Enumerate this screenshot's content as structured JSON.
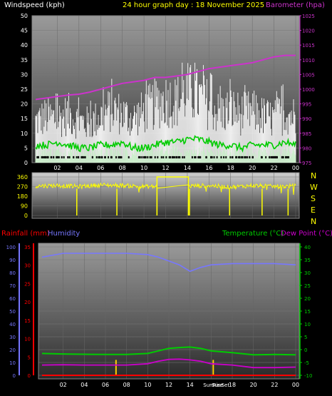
{
  "header": {
    "left_title": "Windspeed (kph)",
    "center_title": "24 hour graph day : 18 November 2025",
    "right_title": "Barometer (hpa)"
  },
  "direction_letters": [
    "N",
    "W",
    "S",
    "E",
    "N"
  ],
  "bottom_titles": {
    "rainfall": "Rainfall (mm)",
    "humidity": "Humidity",
    "temperature": "Temperature (°C)",
    "dewpoint": "Dew Point (°C)"
  },
  "sun_markers": {
    "sunrise_label": "SunRise",
    "sunset_label": "SunSet",
    "sunrise_hour": 7,
    "sunset_hour": 16.2
  },
  "colors": {
    "wind": "#ffffff",
    "wind_avg": "#00cc00",
    "gust_fill": "#c8f0c8",
    "barometer": "#cc33cc",
    "direction": "#ffff00",
    "humidity": "#7777ff",
    "temperature": "#00cc00",
    "dewpoint": "#cc00cc",
    "rainfall": "#ff0000"
  },
  "chart_data": [
    {
      "type": "line",
      "name": "wind-barometer",
      "x_ticks": [
        "02",
        "04",
        "06",
        "08",
        "10",
        "12",
        "14",
        "16",
        "18",
        "20",
        "22",
        "00"
      ],
      "y_left_ticks": [
        "0",
        "5",
        "10",
        "15",
        "20",
        "25",
        "30",
        "35",
        "40",
        "45",
        "50"
      ],
      "y_left_range": [
        0,
        50
      ],
      "y_right_ticks": [
        "975",
        "980",
        "985",
        "990",
        "995",
        "1000",
        "1005",
        "1010",
        "1015",
        "1020",
        "1025"
      ],
      "y_right_range": [
        975,
        1025
      ],
      "series": [
        {
          "name": "Barometer (hpa)",
          "x": [
            0,
            1,
            2,
            3,
            4,
            5,
            6,
            7,
            8,
            9,
            10,
            11,
            12,
            13,
            14,
            15,
            16,
            17,
            18,
            19,
            20,
            21,
            22,
            23,
            24
          ],
          "values": [
            996.5,
            997,
            997.5,
            998,
            998.3,
            999,
            1000,
            1001,
            1002,
            1002.5,
            1003,
            1004,
            1004,
            1004.5,
            1005,
            1006,
            1007,
            1007.5,
            1008,
            1008.5,
            1009,
            1010,
            1011,
            1011.5,
            1011.5
          ]
        },
        {
          "name": "Wind avg",
          "x": [
            0,
            1,
            2,
            3,
            4,
            5,
            6,
            7,
            8,
            9,
            10,
            11,
            12,
            13,
            14,
            15,
            16,
            17,
            18,
            19,
            20,
            21,
            22,
            23,
            24
          ],
          "values": [
            6,
            6,
            7,
            6,
            5,
            5,
            6,
            6,
            7,
            5,
            5,
            6,
            7,
            7,
            8,
            8,
            7,
            6,
            6,
            5,
            6,
            6,
            6,
            7,
            6
          ]
        },
        {
          "name": "Wind gust",
          "x": [
            0,
            1,
            2,
            3,
            4,
            5,
            6,
            7,
            8,
            9,
            10,
            11,
            12,
            13,
            14,
            15,
            16,
            17,
            18,
            19,
            20,
            21,
            22,
            23,
            24
          ],
          "values": [
            17,
            19,
            18,
            20,
            17,
            16,
            19,
            22,
            20,
            18,
            21,
            24,
            26,
            25,
            29,
            27,
            24,
            20,
            22,
            20,
            21,
            19,
            18,
            21,
            19
          ]
        }
      ]
    },
    {
      "type": "line",
      "name": "wind-direction",
      "x_ticks": [
        "02",
        "04",
        "06",
        "08",
        "10",
        "12",
        "14",
        "16",
        "18",
        "20",
        "22",
        "00"
      ],
      "y_ticks": [
        "0",
        "90",
        "180",
        "270",
        "360"
      ],
      "y_range": [
        0,
        360
      ],
      "series": [
        {
          "name": "Direction",
          "x": [
            0,
            2,
            4,
            6,
            8,
            10,
            11,
            14,
            16,
            18,
            20,
            22,
            24
          ],
          "values": [
            275,
            280,
            270,
            285,
            280,
            270,
            270,
            275,
            280,
            265,
            280,
            270,
            275
          ]
        }
      ]
    },
    {
      "type": "line",
      "name": "temperature-humidity",
      "x_ticks": [
        "02",
        "04",
        "06",
        "08",
        "10",
        "12",
        "14",
        "16",
        "18",
        "20",
        "22",
        "00"
      ],
      "y_humidity_ticks": [
        "0",
        "10",
        "20",
        "30",
        "40",
        "50",
        "60",
        "70",
        "80",
        "90",
        "100"
      ],
      "y_humidity_range": [
        0,
        100
      ],
      "y_rain_ticks": [
        "0",
        "5",
        "10",
        "15",
        "20",
        "25",
        "30",
        "35"
      ],
      "y_rain_range": [
        0,
        35
      ],
      "y_temp_ticks": [
        "-10",
        "-5",
        "0",
        "5",
        "10",
        "15",
        "20",
        "25",
        "30",
        "35",
        "40"
      ],
      "y_temp_range": [
        -10,
        40
      ],
      "series": [
        {
          "name": "Humidity",
          "x": [
            0,
            2,
            4,
            6,
            8,
            10,
            11,
            12,
            13,
            14,
            15,
            16,
            18,
            20,
            22,
            24
          ],
          "values": [
            92,
            95,
            95,
            95,
            95,
            94,
            92,
            89,
            86,
            81,
            84,
            86,
            87,
            87,
            87,
            86
          ]
        },
        {
          "name": "Temperature (°C)",
          "x": [
            0,
            2,
            4,
            6,
            8,
            10,
            11,
            12,
            13,
            14,
            15,
            16,
            18,
            20,
            22,
            24
          ],
          "values": [
            -1.5,
            -1.7,
            -1.8,
            -1.9,
            -1.9,
            -1.5,
            -0.5,
            0.5,
            0.8,
            1,
            0.5,
            -0.5,
            -1.2,
            -2,
            -1.9,
            -2
          ]
        },
        {
          "name": "Dew Point (°C)",
          "x": [
            0,
            2,
            4,
            6,
            8,
            10,
            11,
            12,
            13,
            14,
            15,
            16,
            18,
            20,
            22,
            24
          ],
          "values": [
            -6,
            -5.9,
            -6,
            -6,
            -6,
            -5.5,
            -4.5,
            -3.8,
            -3.7,
            -4,
            -4.5,
            -5.5,
            -6,
            -7,
            -7,
            -6.8
          ]
        },
        {
          "name": "Rainfall (mm)",
          "x": [
            0,
            24
          ],
          "values": [
            0,
            0
          ]
        }
      ]
    }
  ]
}
